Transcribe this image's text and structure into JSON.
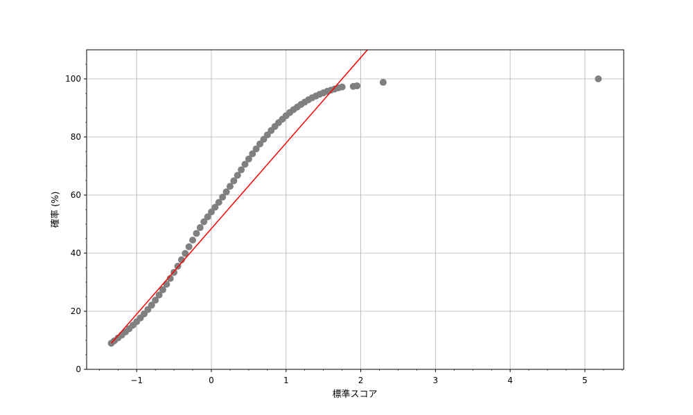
{
  "chart_data": {
    "type": "scatter",
    "title": "",
    "xlabel": "標準スコア",
    "ylabel": "確率 (%)",
    "xlim": [
      -1.67,
      5.52
    ],
    "ylim": [
      0,
      110
    ],
    "xticks": [
      -1,
      0,
      1,
      2,
      3,
      4,
      5
    ],
    "xtick_labels": [
      "−1",
      "0",
      "1",
      "2",
      "3",
      "4",
      "5"
    ],
    "yticks": [
      0,
      20,
      40,
      60,
      80,
      100
    ],
    "ytick_labels": [
      "0",
      "20",
      "40",
      "60",
      "80",
      "100"
    ],
    "grid": true,
    "series": [
      {
        "kind": "points",
        "color": "#808080",
        "x": [
          -1.34,
          -1.3,
          -1.25,
          -1.2,
          -1.15,
          -1.1,
          -1.05,
          -1.0,
          -0.95,
          -0.9,
          -0.85,
          -0.8,
          -0.75,
          -0.7,
          -0.65,
          -0.6,
          -0.55,
          -0.5,
          -0.45,
          -0.4,
          -0.35,
          -0.3,
          -0.25,
          -0.2,
          -0.15,
          -0.1,
          -0.05,
          0.0,
          0.05,
          0.1,
          0.15,
          0.2,
          0.25,
          0.3,
          0.35,
          0.4,
          0.45,
          0.5,
          0.55,
          0.6,
          0.65,
          0.7,
          0.75,
          0.8,
          0.85,
          0.9,
          0.95,
          1.0,
          1.05,
          1.1,
          1.15,
          1.2,
          1.25,
          1.3,
          1.35,
          1.4,
          1.45,
          1.5,
          1.55,
          1.6,
          1.65,
          1.7,
          1.75,
          1.9,
          1.95,
          2.3,
          5.18
        ],
        "y": [
          9.0,
          9.8,
          10.8,
          11.8,
          12.9,
          14.0,
          15.2,
          16.4,
          17.7,
          19.1,
          20.6,
          22.1,
          23.8,
          25.6,
          27.4,
          29.3,
          31.3,
          33.4,
          35.5,
          37.7,
          39.9,
          42.2,
          44.5,
          46.8,
          48.8,
          50.8,
          52.5,
          54.2,
          55.8,
          57.5,
          59.3,
          61.1,
          63.0,
          64.9,
          66.8,
          68.7,
          70.6,
          72.4,
          74.2,
          75.9,
          77.6,
          79.2,
          80.7,
          82.2,
          83.6,
          84.9,
          86.1,
          87.3,
          88.4,
          89.4,
          90.3,
          91.2,
          92.0,
          92.8,
          93.5,
          94.1,
          94.7,
          95.2,
          95.7,
          96.1,
          96.5,
          96.9,
          97.2,
          97.4,
          97.6,
          98.8,
          100.0
        ]
      },
      {
        "kind": "line",
        "color": "#ff0000",
        "x": [
          -1.34,
          2.09
        ],
        "y": [
          9.0,
          110.0
        ]
      }
    ]
  }
}
